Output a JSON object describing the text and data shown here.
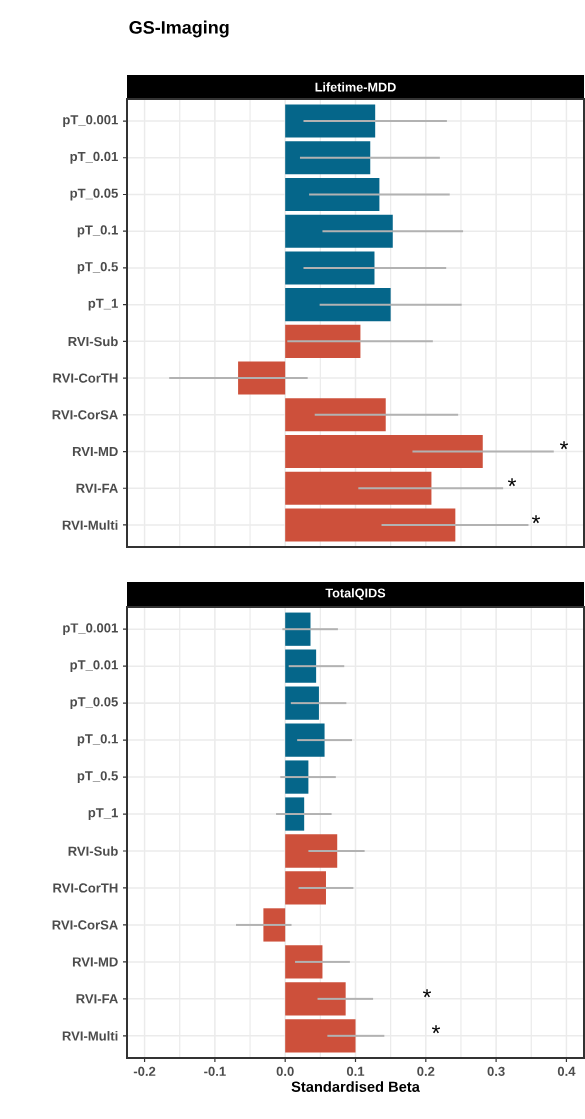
{
  "chart_data": [
    {
      "type": "bar",
      "orientation": "horizontal",
      "title": "GS-Imaging",
      "subtitle": "Lifetime-MDD",
      "categories": [
        "pT_0.001",
        "pT_0.01",
        "pT_0.05",
        "pT_0.1",
        "pT_0.5",
        "pT_1",
        "RVI-Sub",
        "RVI-CorTH",
        "RVI-CorSA",
        "RVI-MD",
        "RVI-FA",
        "RVI-Multi"
      ],
      "values": [
        0.128,
        0.121,
        0.134,
        0.153,
        0.127,
        0.15,
        0.107,
        -0.067,
        0.143,
        0.281,
        0.208,
        0.242
      ],
      "errors": [
        [
          0.026,
          0.23
        ],
        [
          0.021,
          0.22
        ],
        [
          0.034,
          0.234
        ],
        [
          0.053,
          0.253
        ],
        [
          0.026,
          0.229
        ],
        [
          0.049,
          0.251
        ],
        [
          0.003,
          0.21
        ],
        [
          -0.165,
          0.032
        ],
        [
          0.042,
          0.246
        ],
        [
          0.181,
          0.382
        ],
        [
          0.104,
          0.31
        ],
        [
          0.137,
          0.346
        ]
      ],
      "colors": [
        "#05668a",
        "#05668a",
        "#05668a",
        "#05668a",
        "#05668a",
        "#05668a",
        "#cd503b",
        "#cd503b",
        "#cd503b",
        "#cd503b",
        "#cd503b",
        "#cd503b"
      ],
      "xlim": [
        -0.225,
        0.425
      ],
      "xticks": [
        -0.2,
        -0.1,
        0,
        0.1,
        0.2,
        0.3,
        0.4
      ],
      "grid": true,
      "tick_labels": "y",
      "annotations": [
        "*",
        "*",
        "*"
      ]
    },
    {
      "type": "bar",
      "orientation": "horizontal",
      "subtitle": "TotalQIDS",
      "xlabel": "Standardised Beta",
      "categories": [
        "pT_0.001",
        "pT_0.01",
        "pT_0.05",
        "pT_0.1",
        "pT_0.5",
        "pT_1",
        "RVI-Sub",
        "RVI-CorTH",
        "RVI-CorSA",
        "RVI-MD",
        "RVI-FA",
        "RVI-Multi"
      ],
      "values": [
        0.036,
        0.044,
        0.048,
        0.056,
        0.033,
        0.027,
        0.074,
        0.058,
        -0.031,
        0.053,
        0.086,
        0.1
      ],
      "errors": [
        [
          -0.004,
          0.075
        ],
        [
          0.005,
          0.084
        ],
        [
          0.008,
          0.087
        ],
        [
          0.017,
          0.095
        ],
        [
          -0.007,
          0.072
        ],
        [
          -0.013,
          0.066
        ],
        [
          0.033,
          0.113
        ],
        [
          0.019,
          0.097
        ],
        [
          -0.07,
          0.009
        ],
        [
          0.014,
          0.092
        ],
        [
          0.046,
          0.125
        ],
        [
          0.06,
          0.141
        ]
      ],
      "colors": [
        "#05668a",
        "#05668a",
        "#05668a",
        "#05668a",
        "#05668a",
        "#05668a",
        "#cd503b",
        "#cd503b",
        "#cd503b",
        "#cd503b",
        "#cd503b",
        "#cd503b"
      ],
      "xlim": [
        -0.225,
        0.425
      ],
      "xticks": [
        -0.2,
        -0.1,
        {
          "value": 0,
          "label": "0.0"
        },
        0.1,
        0.2,
        0.3,
        0.4
      ],
      "grid": true,
      "annotations": [
        "*",
        "*"
      ]
    }
  ]
}
